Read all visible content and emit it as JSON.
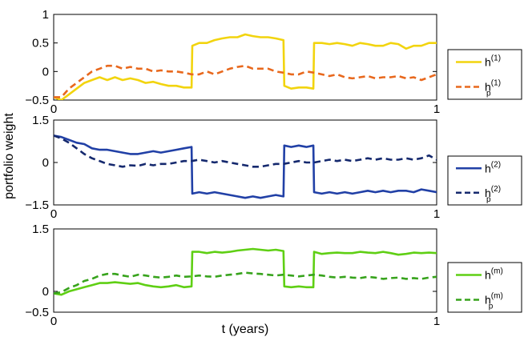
{
  "figure": {
    "ylabel": "portfolio weight",
    "xlabel": "t (years)"
  },
  "chart_data": [
    {
      "type": "line",
      "xlim": [
        0,
        1
      ],
      "ylim": [
        -0.5,
        1
      ],
      "xticks": [
        "0",
        "1"
      ],
      "yticks": [
        "1",
        "0.5",
        "0",
        "−0.5"
      ],
      "ytick_values": [
        1,
        0.5,
        0,
        -0.5
      ],
      "grid": false,
      "legend_placement": "outside-right",
      "series": [
        {
          "name": "h",
          "sup": "(1)",
          "sub": "",
          "color": "#f2d40e",
          "style": "solid",
          "x": [
            0,
            0.02,
            0.04,
            0.06,
            0.08,
            0.1,
            0.12,
            0.14,
            0.16,
            0.18,
            0.2,
            0.22,
            0.24,
            0.26,
            0.28,
            0.3,
            0.32,
            0.34,
            0.36,
            0.362,
            0.38,
            0.4,
            0.42,
            0.44,
            0.46,
            0.48,
            0.5,
            0.52,
            0.54,
            0.56,
            0.58,
            0.6,
            0.602,
            0.62,
            0.64,
            0.66,
            0.678,
            0.68,
            0.7,
            0.72,
            0.74,
            0.76,
            0.78,
            0.8,
            0.82,
            0.84,
            0.86,
            0.88,
            0.9,
            0.92,
            0.94,
            0.96,
            0.98,
            1.0
          ],
          "y": [
            -0.45,
            -0.5,
            -0.4,
            -0.3,
            -0.2,
            -0.15,
            -0.1,
            -0.15,
            -0.1,
            -0.15,
            -0.12,
            -0.15,
            -0.2,
            -0.18,
            -0.22,
            -0.25,
            -0.25,
            -0.28,
            -0.28,
            0.45,
            0.5,
            0.5,
            0.55,
            0.58,
            0.6,
            0.6,
            0.65,
            0.62,
            0.6,
            0.6,
            0.58,
            0.55,
            -0.25,
            -0.3,
            -0.28,
            -0.28,
            -0.3,
            0.5,
            0.5,
            0.48,
            0.5,
            0.48,
            0.45,
            0.5,
            0.48,
            0.45,
            0.45,
            0.5,
            0.48,
            0.4,
            0.45,
            0.45,
            0.5,
            0.5
          ]
        },
        {
          "name": "h",
          "sup": "(1)",
          "sub": "p",
          "color": "#e8681d",
          "style": "dashed",
          "x": [
            0,
            0.02,
            0.04,
            0.06,
            0.08,
            0.1,
            0.12,
            0.14,
            0.16,
            0.18,
            0.2,
            0.22,
            0.24,
            0.26,
            0.28,
            0.3,
            0.32,
            0.34,
            0.36,
            0.38,
            0.4,
            0.42,
            0.44,
            0.46,
            0.48,
            0.5,
            0.52,
            0.54,
            0.56,
            0.58,
            0.6,
            0.62,
            0.64,
            0.66,
            0.68,
            0.7,
            0.72,
            0.74,
            0.76,
            0.78,
            0.8,
            0.82,
            0.84,
            0.86,
            0.88,
            0.9,
            0.92,
            0.94,
            0.96,
            0.98,
            1.0
          ],
          "y": [
            -0.45,
            -0.45,
            -0.3,
            -0.2,
            -0.1,
            0.0,
            0.05,
            0.1,
            0.1,
            0.05,
            0.08,
            0.05,
            0.05,
            0.0,
            0.02,
            0.0,
            0.0,
            -0.02,
            -0.05,
            -0.05,
            0.0,
            -0.05,
            0.0,
            0.05,
            0.08,
            0.1,
            0.05,
            0.05,
            0.05,
            0.0,
            -0.02,
            -0.05,
            -0.05,
            0.0,
            -0.02,
            -0.05,
            -0.08,
            -0.05,
            -0.1,
            -0.12,
            -0.1,
            -0.08,
            -0.12,
            -0.1,
            -0.1,
            -0.08,
            -0.12,
            -0.1,
            -0.15,
            -0.1,
            -0.05
          ]
        }
      ]
    },
    {
      "type": "line",
      "xlim": [
        0,
        1
      ],
      "ylim": [
        -1.5,
        1.5
      ],
      "xticks": [
        "0",
        "1"
      ],
      "yticks": [
        "1.5",
        "0",
        "−1.5"
      ],
      "ytick_values": [
        1.5,
        0,
        -1.5
      ],
      "grid": false,
      "legend_placement": "outside-right",
      "series": [
        {
          "name": "h",
          "sup": "(2)",
          "sub": "",
          "color": "#2140a6",
          "style": "solid",
          "x": [
            0,
            0.02,
            0.04,
            0.06,
            0.08,
            0.1,
            0.12,
            0.14,
            0.16,
            0.18,
            0.2,
            0.22,
            0.24,
            0.26,
            0.28,
            0.3,
            0.32,
            0.34,
            0.36,
            0.362,
            0.38,
            0.4,
            0.42,
            0.44,
            0.46,
            0.48,
            0.5,
            0.52,
            0.54,
            0.56,
            0.58,
            0.6,
            0.602,
            0.62,
            0.64,
            0.66,
            0.678,
            0.68,
            0.7,
            0.72,
            0.74,
            0.76,
            0.78,
            0.8,
            0.82,
            0.84,
            0.86,
            0.88,
            0.9,
            0.92,
            0.94,
            0.96,
            0.98,
            1.0
          ],
          "y": [
            0.95,
            0.9,
            0.8,
            0.7,
            0.65,
            0.5,
            0.45,
            0.45,
            0.4,
            0.35,
            0.3,
            0.3,
            0.35,
            0.4,
            0.35,
            0.4,
            0.45,
            0.5,
            0.55,
            -1.1,
            -1.05,
            -1.1,
            -1.05,
            -1.1,
            -1.15,
            -1.2,
            -1.25,
            -1.2,
            -1.25,
            -1.2,
            -1.15,
            -1.2,
            0.6,
            0.55,
            0.6,
            0.55,
            0.6,
            -1.05,
            -1.1,
            -1.05,
            -1.1,
            -1.05,
            -1.1,
            -1.05,
            -1.0,
            -1.05,
            -1.0,
            -1.05,
            -1.0,
            -1.0,
            -1.05,
            -0.95,
            -1.0,
            -1.05
          ]
        },
        {
          "name": "h",
          "sup": "(2)",
          "sub": "p",
          "color": "#15296e",
          "style": "dashed",
          "x": [
            0,
            0.02,
            0.04,
            0.06,
            0.08,
            0.1,
            0.12,
            0.14,
            0.16,
            0.18,
            0.2,
            0.22,
            0.24,
            0.26,
            0.28,
            0.3,
            0.32,
            0.34,
            0.36,
            0.38,
            0.4,
            0.42,
            0.44,
            0.46,
            0.48,
            0.5,
            0.52,
            0.54,
            0.56,
            0.58,
            0.6,
            0.62,
            0.64,
            0.66,
            0.68,
            0.7,
            0.72,
            0.74,
            0.76,
            0.78,
            0.8,
            0.82,
            0.84,
            0.86,
            0.88,
            0.9,
            0.92,
            0.94,
            0.96,
            0.98,
            1.0
          ],
          "y": [
            0.95,
            0.85,
            0.7,
            0.5,
            0.3,
            0.15,
            0.05,
            -0.05,
            -0.1,
            -0.15,
            -0.1,
            -0.12,
            -0.05,
            -0.1,
            -0.05,
            -0.05,
            0.0,
            0.05,
            0.05,
            0.1,
            0.05,
            0.0,
            0.05,
            0.0,
            -0.05,
            -0.1,
            -0.15,
            -0.15,
            -0.1,
            -0.05,
            -0.05,
            0.0,
            0.05,
            0.0,
            0.0,
            0.05,
            0.1,
            0.05,
            0.1,
            0.05,
            0.1,
            0.15,
            0.1,
            0.15,
            0.1,
            0.1,
            0.15,
            0.1,
            0.15,
            0.25,
            0.1
          ]
        }
      ]
    },
    {
      "type": "line",
      "xlim": [
        0,
        1
      ],
      "ylim": [
        -0.5,
        1.5
      ],
      "xticks": [
        "0",
        "1"
      ],
      "yticks": [
        "1.5",
        "0",
        "−0.5"
      ],
      "ytick_values": [
        1.5,
        0,
        -0.5
      ],
      "grid": false,
      "legend_placement": "outside-right",
      "series": [
        {
          "name": "h",
          "sup": "(m)",
          "sub": "",
          "color": "#5fcf14",
          "style": "solid",
          "x": [
            0,
            0.02,
            0.04,
            0.06,
            0.08,
            0.1,
            0.12,
            0.14,
            0.16,
            0.18,
            0.2,
            0.22,
            0.24,
            0.26,
            0.28,
            0.3,
            0.32,
            0.34,
            0.36,
            0.362,
            0.38,
            0.4,
            0.42,
            0.44,
            0.46,
            0.48,
            0.5,
            0.52,
            0.54,
            0.56,
            0.58,
            0.6,
            0.602,
            0.62,
            0.64,
            0.66,
            0.678,
            0.68,
            0.7,
            0.72,
            0.74,
            0.76,
            0.78,
            0.8,
            0.82,
            0.84,
            0.86,
            0.88,
            0.9,
            0.92,
            0.94,
            0.96,
            0.98,
            1.0
          ],
          "y": [
            -0.05,
            -0.08,
            0.0,
            0.05,
            0.1,
            0.15,
            0.2,
            0.2,
            0.22,
            0.2,
            0.18,
            0.2,
            0.15,
            0.12,
            0.1,
            0.12,
            0.15,
            0.1,
            0.12,
            0.95,
            0.95,
            0.92,
            0.95,
            0.93,
            0.95,
            0.98,
            1.0,
            1.02,
            1.0,
            0.98,
            1.0,
            0.97,
            0.12,
            0.1,
            0.12,
            0.1,
            0.1,
            0.95,
            0.9,
            0.92,
            0.93,
            0.92,
            0.92,
            0.95,
            0.93,
            0.92,
            0.95,
            0.92,
            0.88,
            0.9,
            0.93,
            0.92,
            0.93,
            0.92
          ]
        },
        {
          "name": "h",
          "sup": "(m)",
          "sub": "p",
          "color": "#37a31c",
          "style": "dashed",
          "x": [
            0,
            0.02,
            0.04,
            0.06,
            0.08,
            0.1,
            0.12,
            0.14,
            0.16,
            0.18,
            0.2,
            0.22,
            0.24,
            0.26,
            0.28,
            0.3,
            0.32,
            0.34,
            0.36,
            0.38,
            0.4,
            0.42,
            0.44,
            0.46,
            0.48,
            0.5,
            0.52,
            0.54,
            0.56,
            0.58,
            0.6,
            0.62,
            0.64,
            0.66,
            0.68,
            0.7,
            0.72,
            0.74,
            0.76,
            0.78,
            0.8,
            0.82,
            0.84,
            0.86,
            0.88,
            0.9,
            0.92,
            0.94,
            0.96,
            0.98,
            1.0
          ],
          "y": [
            -0.05,
            -0.02,
            0.08,
            0.15,
            0.25,
            0.3,
            0.38,
            0.42,
            0.42,
            0.38,
            0.35,
            0.4,
            0.38,
            0.35,
            0.33,
            0.35,
            0.38,
            0.35,
            0.36,
            0.38,
            0.36,
            0.35,
            0.38,
            0.4,
            0.42,
            0.45,
            0.43,
            0.42,
            0.4,
            0.38,
            0.4,
            0.38,
            0.36,
            0.38,
            0.4,
            0.38,
            0.35,
            0.33,
            0.35,
            0.33,
            0.32,
            0.35,
            0.33,
            0.3,
            0.32,
            0.33,
            0.3,
            0.32,
            0.3,
            0.33,
            0.35
          ]
        }
      ]
    }
  ]
}
